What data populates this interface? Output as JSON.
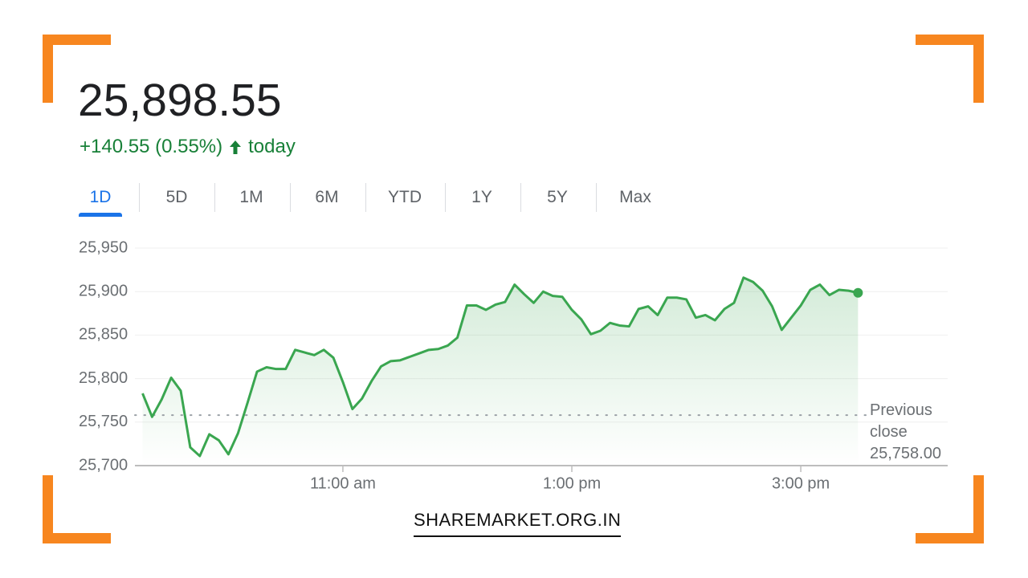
{
  "header": {
    "price": "25,898.55",
    "change": "+140.55 (0.55%)",
    "period": "today"
  },
  "tabs": {
    "items": [
      "1D",
      "5D",
      "1M",
      "6M",
      "YTD",
      "1Y",
      "5Y",
      "Max"
    ],
    "active": 0
  },
  "footer": {
    "watermark": "SHAREMARKET.ORG.IN"
  },
  "chart_data": {
    "type": "line",
    "x": [
      555,
      560,
      565,
      570,
      575,
      580,
      585,
      590,
      595,
      600,
      605,
      610,
      615,
      620,
      625,
      630,
      635,
      640,
      645,
      650,
      655,
      660,
      665,
      670,
      675,
      680,
      685,
      690,
      695,
      700,
      705,
      710,
      715,
      720,
      725,
      730,
      735,
      740,
      745,
      750,
      755,
      760,
      765,
      770,
      775,
      780,
      785,
      790,
      795,
      800,
      805,
      810,
      815,
      820,
      825,
      830,
      835,
      840,
      845,
      850,
      855,
      860,
      865,
      870,
      875,
      880,
      885,
      890,
      895,
      900,
      905,
      910,
      915,
      920,
      925,
      930
    ],
    "series": [
      {
        "color": "#3aa650",
        "values": [
          25783,
          25756,
          25776,
          25801,
          25786,
          25721,
          25711,
          25736,
          25729,
          25713,
          25737,
          25772,
          25808,
          25813,
          25811,
          25811,
          25833,
          25830,
          25827,
          25833,
          25824,
          25796,
          25765,
          25777,
          25797,
          25814,
          25820,
          25821,
          25825,
          25829,
          25833,
          25834,
          25838,
          25847,
          25884,
          25884,
          25879,
          25885,
          25888,
          25908,
          25897,
          25887,
          25900,
          25895,
          25894,
          25879,
          25868,
          25851,
          25855,
          25864,
          25861,
          25860,
          25880,
          25883,
          25873,
          25893,
          25893,
          25891,
          25870,
          25873,
          25867,
          25880,
          25887,
          25916,
          25911,
          25901,
          25883,
          25856,
          25870,
          25884,
          25902,
          25908,
          25896,
          25902,
          25901,
          25898.55
        ]
      }
    ],
    "xlim": [
      551,
      977
    ],
    "ylim": [
      25700,
      25950
    ],
    "xticks": [
      {
        "value": 660,
        "label": "11:00 am"
      },
      {
        "value": 780,
        "label": "1:00 pm"
      },
      {
        "value": 900,
        "label": "3:00 pm"
      }
    ],
    "yticks": [
      {
        "value": 25700,
        "label": "25,700"
      },
      {
        "value": 25750,
        "label": "25,750"
      },
      {
        "value": 25800,
        "label": "25,800"
      },
      {
        "value": 25850,
        "label": "25,850"
      },
      {
        "value": 25900,
        "label": "25,900"
      },
      {
        "value": 25950,
        "label": "25,950"
      }
    ],
    "grid": true,
    "previous_close": {
      "label": "Previous close",
      "value": 25758,
      "value_label": "25,758.00"
    }
  }
}
